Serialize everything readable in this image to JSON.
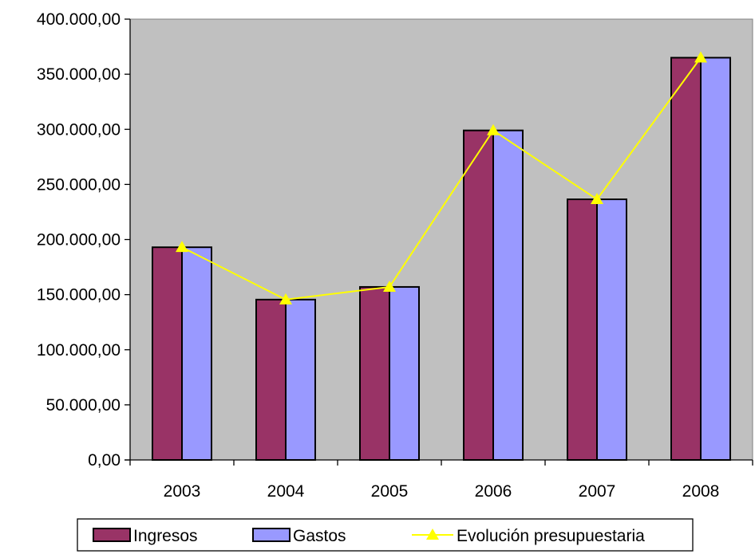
{
  "chart_data": {
    "type": "bar",
    "title": "",
    "xlabel": "",
    "ylabel": "",
    "categories": [
      "2003",
      "2004",
      "2005",
      "2006",
      "2007",
      "2008"
    ],
    "ylim": [
      0,
      400000
    ],
    "yticks": [
      0,
      50000,
      100000,
      150000,
      200000,
      250000,
      300000,
      350000,
      400000
    ],
    "ytick_labels": [
      "0,00",
      "50.000,00",
      "100.000,00",
      "150.000,00",
      "200.000,00",
      "250.000,00",
      "300.000,00",
      "350.000,00",
      "400.000,00"
    ],
    "grid": false,
    "legend_position": "bottom",
    "plot_background": "#C0C0C0",
    "series": [
      {
        "name": "Ingresos",
        "kind": "bar",
        "color": "#993366",
        "values": [
          193000,
          145500,
          157000,
          299000,
          236500,
          365000
        ]
      },
      {
        "name": "Gastos",
        "kind": "bar",
        "color": "#9999FF",
        "values": [
          193000,
          145500,
          157000,
          299000,
          236500,
          365000
        ]
      },
      {
        "name": "Evolución presupuestaria",
        "kind": "line",
        "color": "#FFFF00",
        "marker": "triangle",
        "values": [
          193000,
          145500,
          157000,
          299000,
          236500,
          365000
        ]
      }
    ]
  }
}
